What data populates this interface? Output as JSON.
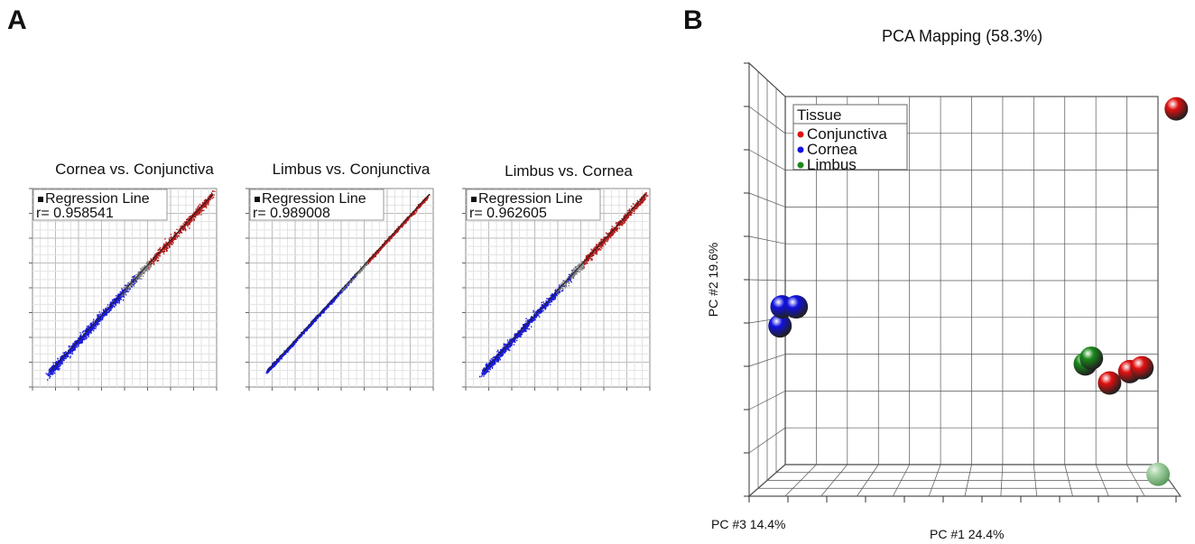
{
  "panels": {
    "a": "A",
    "b": "B"
  },
  "chart_data": [
    {
      "type": "scatter",
      "title": "Cornea vs. Conjunctiva",
      "legend": {
        "label": "Regression Line",
        "r_text": "r= 0.958541"
      },
      "r": 0.958541,
      "series": [
        {
          "color": "#1a1ad8"
        },
        {
          "color": "#808080"
        },
        {
          "color": "#b01818"
        }
      ]
    },
    {
      "type": "scatter",
      "title": "Limbus vs. Conjunctiva",
      "legend": {
        "label": "Regression Line",
        "r_text": "r= 0.989008"
      },
      "r": 0.989008,
      "series": [
        {
          "color": "#1a1ad8"
        },
        {
          "color": "#808080"
        },
        {
          "color": "#b01818"
        }
      ]
    },
    {
      "type": "scatter",
      "title": "Limbus vs. Cornea",
      "legend": {
        "label": "Regression Line",
        "r_text": "r= 0.962605"
      },
      "r": 0.962605,
      "series": [
        {
          "color": "#1a1ad8"
        },
        {
          "color": "#808080"
        },
        {
          "color": "#b01818"
        }
      ]
    },
    {
      "type": "scatter",
      "title": "PCA Mapping (58.3%)",
      "xlabel": "PC #1 24.4%",
      "ylabel": "PC #2 19.6%",
      "zlabel": "PC #3 14.4%",
      "legend": {
        "title": "Tissue",
        "entries": [
          {
            "label": "Conjunctiva",
            "color": "#e01010"
          },
          {
            "label": "Cornea",
            "color": "#1010e0"
          },
          {
            "label": "Limbus",
            "color": "#1a8a1a"
          }
        ]
      },
      "points": [
        {
          "group": "Conjunctiva",
          "u": 0.82,
          "v": 0.25
        },
        {
          "group": "Conjunctiva",
          "u": 0.87,
          "v": 0.28
        },
        {
          "group": "Conjunctiva",
          "u": 0.9,
          "v": 0.29
        },
        {
          "group": "Conjunctiva",
          "u": 0.985,
          "v": 0.97
        },
        {
          "group": "Cornea",
          "u": 0.005,
          "v": 0.4
        },
        {
          "group": "Cornea",
          "u": 0.01,
          "v": 0.45
        },
        {
          "group": "Cornea",
          "u": 0.045,
          "v": 0.45
        },
        {
          "group": "Limbus",
          "u": 0.76,
          "v": 0.3
        },
        {
          "group": "Limbus",
          "u": 0.775,
          "v": 0.315
        },
        {
          "group": "Limbus",
          "u": 0.94,
          "v": 0.01,
          "light": true
        }
      ]
    }
  ]
}
